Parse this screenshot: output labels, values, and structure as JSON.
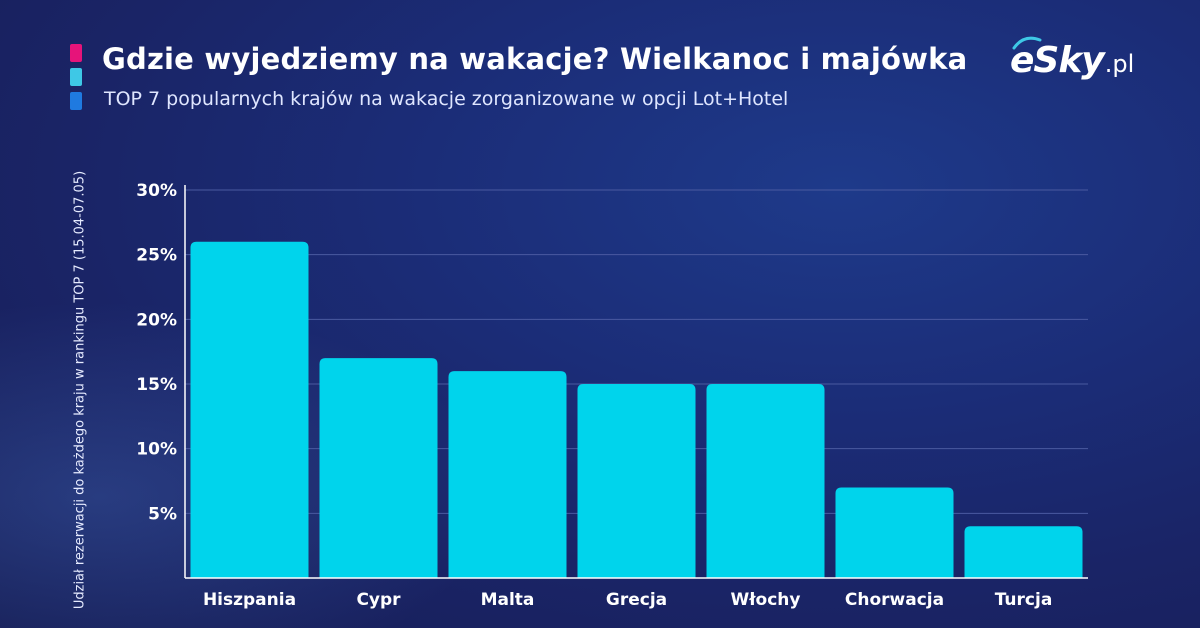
{
  "header": {
    "title": "Gdzie wyjedziemy na wakacje? Wielkanoc i majówka",
    "subtitle": "TOP 7 popularnych krajów na wakacje zorganizowane w opcji Lot+Hotel"
  },
  "logo": {
    "main": "eSky",
    "tld": ".pl"
  },
  "colors": {
    "accent_pink": "#e6147a",
    "accent_cyan": "#3ec8e6",
    "accent_blue": "#1f7ae0",
    "bar": "#00d4ec",
    "grid": "#4a5aa0",
    "axis": "#ffffff"
  },
  "chart_data": {
    "type": "bar",
    "title": "",
    "xlabel": "",
    "ylabel": "Udział rezerwacji do każdego kraju w rankingu TOP 7 (15.04-07.05)",
    "categories": [
      "Hiszpania",
      "Cypr",
      "Malta",
      "Grecja",
      "Włochy",
      "Chorwacja",
      "Turcja"
    ],
    "values": [
      26,
      17,
      16,
      15,
      15,
      7,
      4
    ],
    "unit": "%",
    "ylim": [
      0,
      30
    ],
    "yticks": [
      5,
      10,
      15,
      20,
      25,
      30
    ],
    "ytick_labels": [
      "5%",
      "10%",
      "15%",
      "20%",
      "25%",
      "30%"
    ],
    "grid": true,
    "legend": "none"
  }
}
